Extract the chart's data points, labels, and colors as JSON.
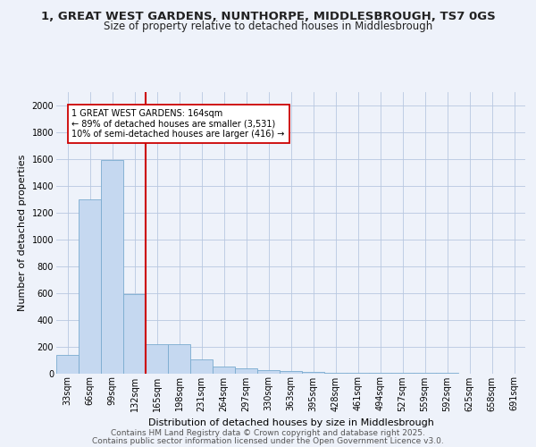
{
  "title_line1": "1, GREAT WEST GARDENS, NUNTHORPE, MIDDLESBROUGH, TS7 0GS",
  "title_line2": "Size of property relative to detached houses in Middlesbrough",
  "xlabel": "Distribution of detached houses by size in Middlesbrough",
  "ylabel": "Number of detached properties",
  "categories": [
    "33sqm",
    "66sqm",
    "99sqm",
    "132sqm",
    "165sqm",
    "198sqm",
    "231sqm",
    "264sqm",
    "297sqm",
    "330sqm",
    "363sqm",
    "395sqm",
    "428sqm",
    "461sqm",
    "494sqm",
    "527sqm",
    "559sqm",
    "592sqm",
    "625sqm",
    "658sqm",
    "691sqm"
  ],
  "values": [
    140,
    1300,
    1590,
    590,
    215,
    215,
    105,
    50,
    35,
    25,
    20,
    8,
    5,
    3,
    2,
    1,
    1,
    1,
    0,
    0,
    0
  ],
  "bar_color": "#c5d8f0",
  "bar_edge_color": "#7aabcf",
  "red_line_index": 4,
  "annotation_text": "1 GREAT WEST GARDENS: 164sqm\n← 89% of detached houses are smaller (3,531)\n10% of semi-detached houses are larger (416) →",
  "annotation_box_color": "#ffffff",
  "annotation_box_edge_color": "#cc0000",
  "ylim": [
    0,
    2100
  ],
  "yticks": [
    0,
    200,
    400,
    600,
    800,
    1000,
    1200,
    1400,
    1600,
    1800,
    2000
  ],
  "footer_line1": "Contains HM Land Registry data © Crown copyright and database right 2025.",
  "footer_line2": "Contains public sector information licensed under the Open Government Licence v3.0.",
  "bg_color": "#eef2fa",
  "plot_bg_color": "#eef2fa",
  "title_fontsize": 9.5,
  "subtitle_fontsize": 8.5,
  "axis_label_fontsize": 8,
  "tick_fontsize": 7,
  "footer_fontsize": 6.5,
  "annot_fontsize": 7
}
